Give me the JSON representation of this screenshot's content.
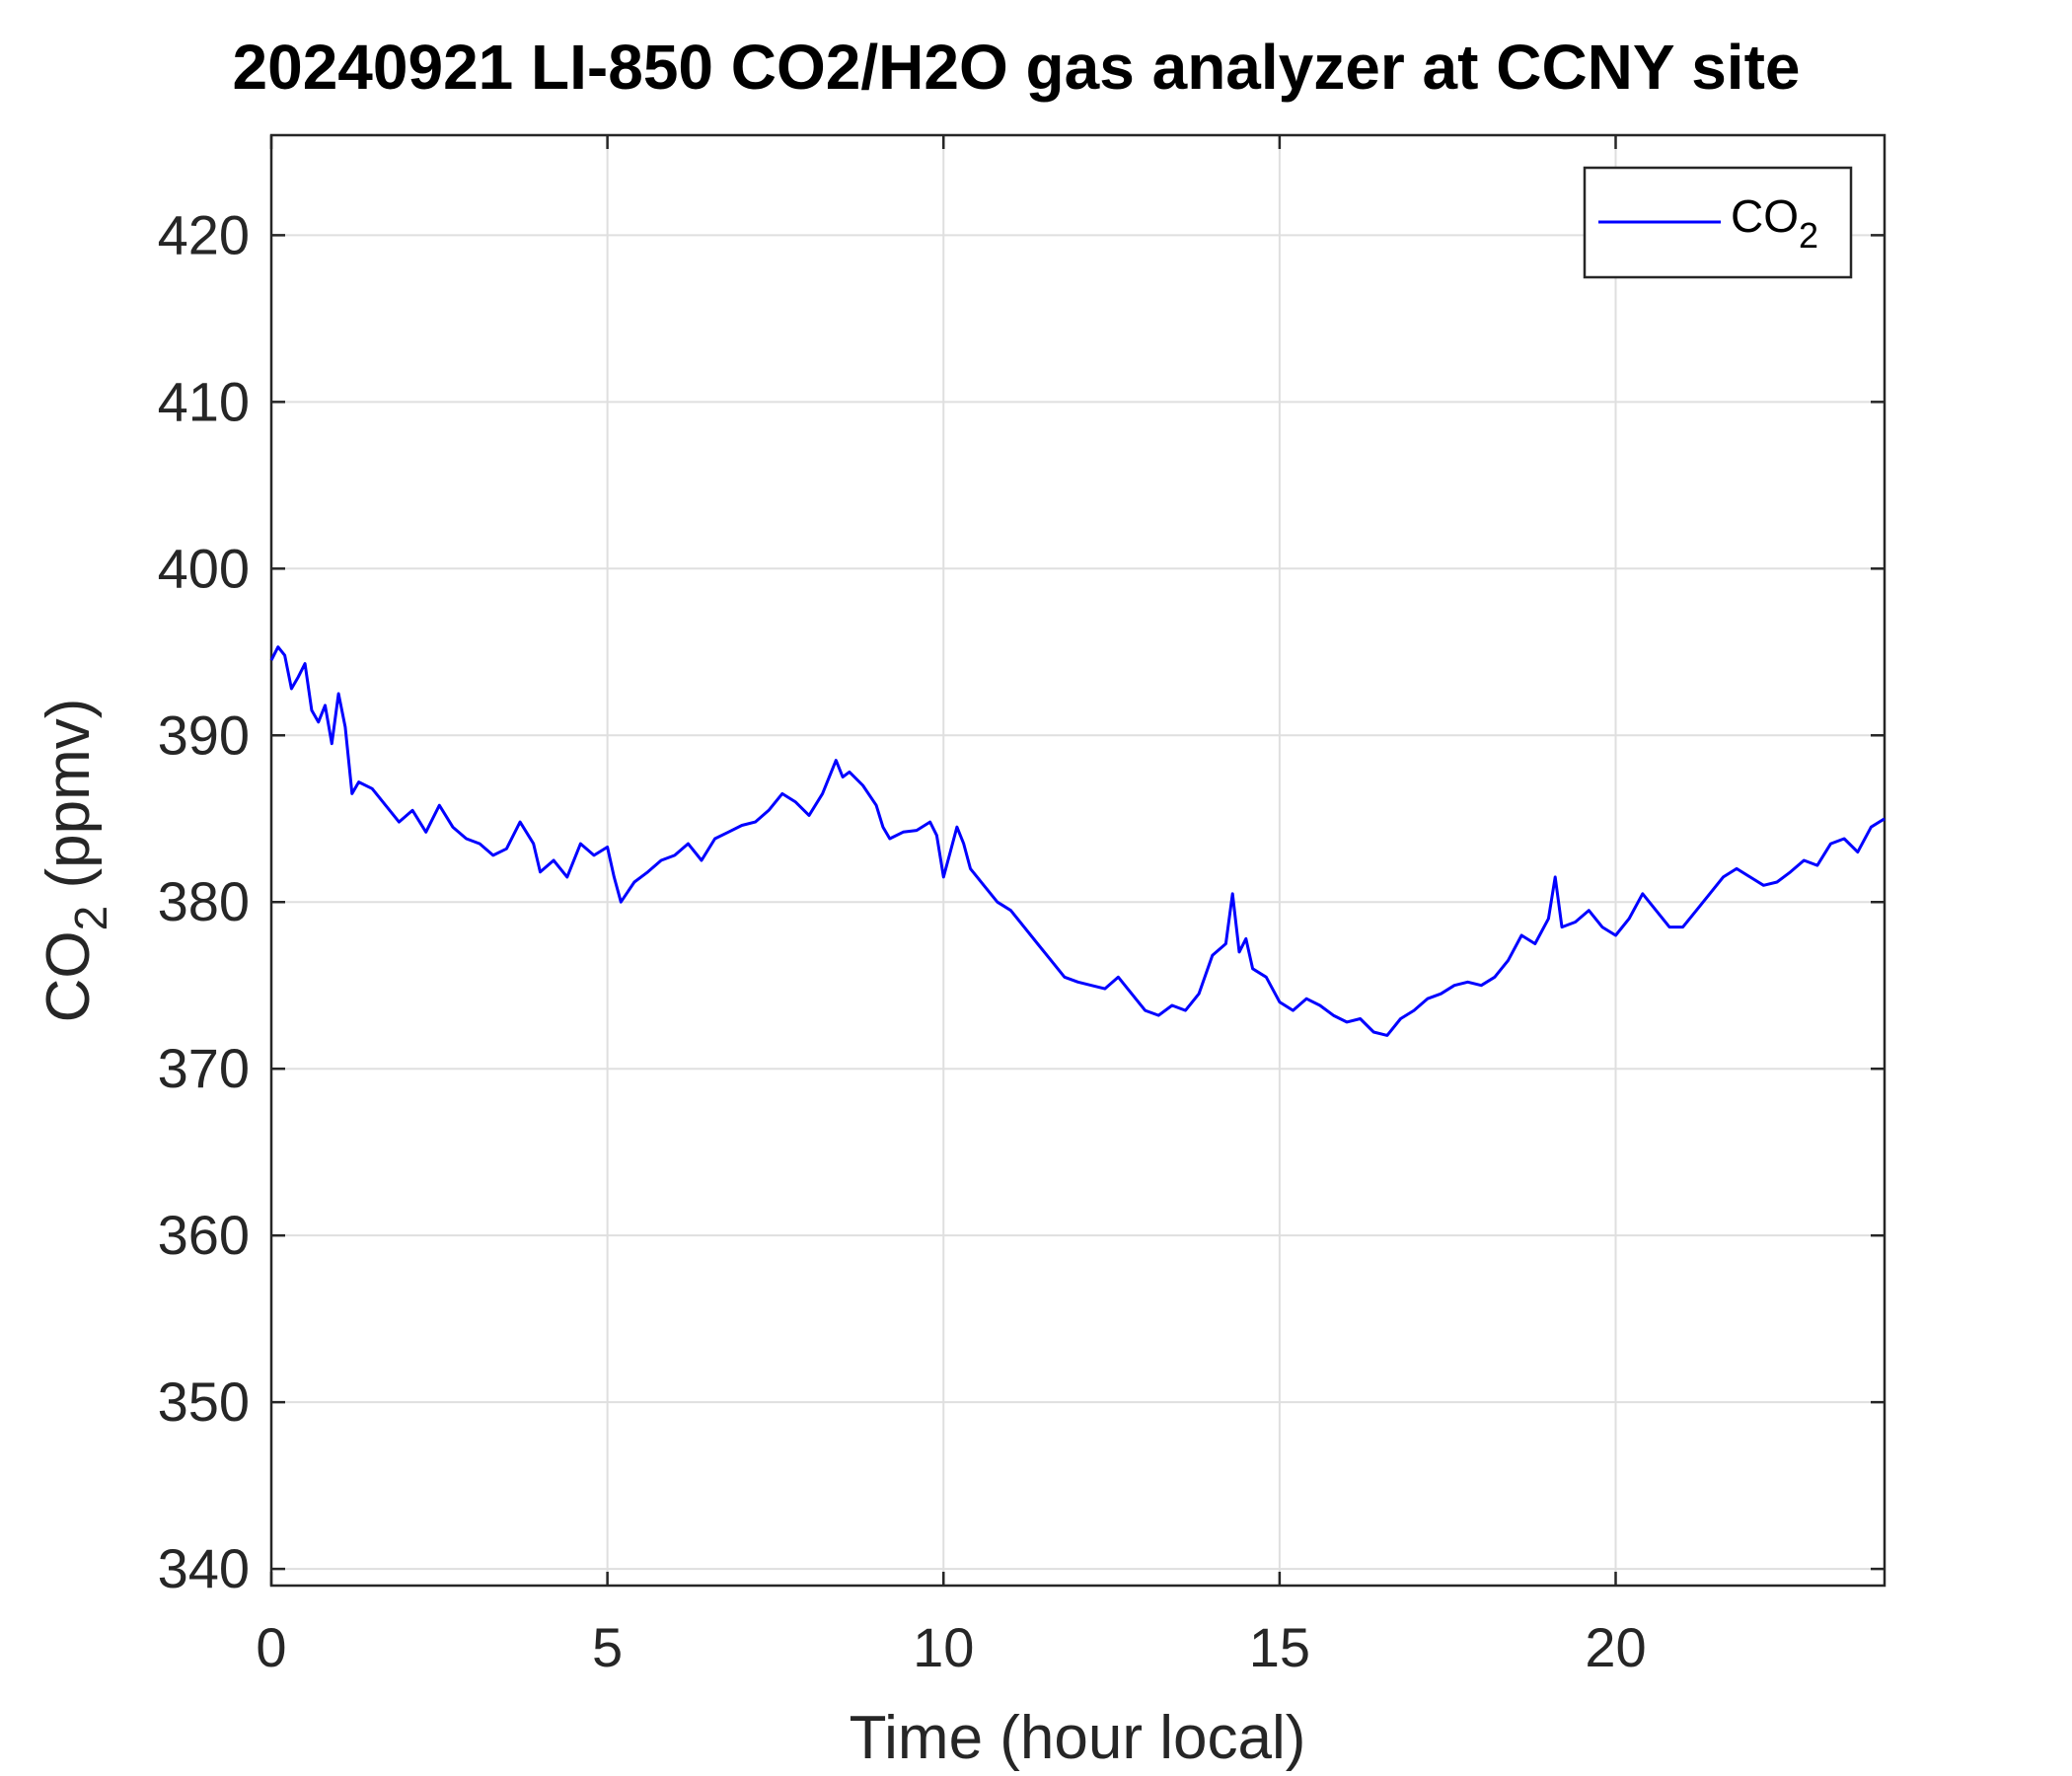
{
  "chart_data": {
    "type": "line",
    "title": "20240921 LI-850 CO2/H2O gas analyzer at CCNY site",
    "xlabel": "Time (hour local)",
    "ylabel": {
      "main": "CO",
      "sub": "2",
      "rest": " (ppmv)"
    },
    "xlim": [
      0,
      24
    ],
    "ylim": [
      339,
      426
    ],
    "xticks": [
      0,
      5,
      10,
      15,
      20
    ],
    "yticks": [
      340,
      350,
      360,
      370,
      380,
      390,
      400,
      410,
      420
    ],
    "grid": true,
    "legend": {
      "position": "top-right",
      "entries": [
        {
          "main": "CO",
          "sub": "2",
          "color": "#0000ff"
        }
      ]
    },
    "series": [
      {
        "name": "CO2",
        "color": "#0000ff",
        "points": [
          [
            0.0,
            394.5
          ],
          [
            0.1,
            395.3
          ],
          [
            0.2,
            394.8
          ],
          [
            0.3,
            392.8
          ],
          [
            0.4,
            393.5
          ],
          [
            0.5,
            394.3
          ],
          [
            0.6,
            391.5
          ],
          [
            0.7,
            390.8
          ],
          [
            0.8,
            391.8
          ],
          [
            0.9,
            389.5
          ],
          [
            1.0,
            392.5
          ],
          [
            1.1,
            390.5
          ],
          [
            1.2,
            386.5
          ],
          [
            1.3,
            387.2
          ],
          [
            1.5,
            386.8
          ],
          [
            1.7,
            385.8
          ],
          [
            1.9,
            384.8
          ],
          [
            2.1,
            385.5
          ],
          [
            2.3,
            384.2
          ],
          [
            2.5,
            385.8
          ],
          [
            2.7,
            384.5
          ],
          [
            2.9,
            383.8
          ],
          [
            3.1,
            383.5
          ],
          [
            3.3,
            382.8
          ],
          [
            3.5,
            383.2
          ],
          [
            3.7,
            384.8
          ],
          [
            3.9,
            383.5
          ],
          [
            4.0,
            381.8
          ],
          [
            4.2,
            382.5
          ],
          [
            4.4,
            381.5
          ],
          [
            4.6,
            383.5
          ],
          [
            4.8,
            382.8
          ],
          [
            5.0,
            383.3
          ],
          [
            5.1,
            381.5
          ],
          [
            5.2,
            380.0
          ],
          [
            5.4,
            381.2
          ],
          [
            5.6,
            381.8
          ],
          [
            5.8,
            382.5
          ],
          [
            6.0,
            382.8
          ],
          [
            6.2,
            383.5
          ],
          [
            6.4,
            382.5
          ],
          [
            6.6,
            383.8
          ],
          [
            6.8,
            384.2
          ],
          [
            7.0,
            384.6
          ],
          [
            7.2,
            384.8
          ],
          [
            7.4,
            385.5
          ],
          [
            7.6,
            386.5
          ],
          [
            7.8,
            386.0
          ],
          [
            8.0,
            385.2
          ],
          [
            8.2,
            386.5
          ],
          [
            8.4,
            388.5
          ],
          [
            8.5,
            387.5
          ],
          [
            8.6,
            387.8
          ],
          [
            8.8,
            387.0
          ],
          [
            9.0,
            385.8
          ],
          [
            9.1,
            384.5
          ],
          [
            9.2,
            383.8
          ],
          [
            9.4,
            384.2
          ],
          [
            9.6,
            384.3
          ],
          [
            9.8,
            384.8
          ],
          [
            9.9,
            384.0
          ],
          [
            10.0,
            381.5
          ],
          [
            10.1,
            383.0
          ],
          [
            10.2,
            384.5
          ],
          [
            10.3,
            383.5
          ],
          [
            10.4,
            382.0
          ],
          [
            10.6,
            381.0
          ],
          [
            10.8,
            380.0
          ],
          [
            11.0,
            379.5
          ],
          [
            11.2,
            378.5
          ],
          [
            11.4,
            377.5
          ],
          [
            11.6,
            376.5
          ],
          [
            11.8,
            375.5
          ],
          [
            12.0,
            375.2
          ],
          [
            12.2,
            375.0
          ],
          [
            12.4,
            374.8
          ],
          [
            12.6,
            375.5
          ],
          [
            12.8,
            374.5
          ],
          [
            13.0,
            373.5
          ],
          [
            13.2,
            373.2
          ],
          [
            13.4,
            373.8
          ],
          [
            13.6,
            373.5
          ],
          [
            13.8,
            374.5
          ],
          [
            14.0,
            376.8
          ],
          [
            14.2,
            377.5
          ],
          [
            14.3,
            380.5
          ],
          [
            14.4,
            377.0
          ],
          [
            14.5,
            377.8
          ],
          [
            14.6,
            376.0
          ],
          [
            14.8,
            375.5
          ],
          [
            15.0,
            374.0
          ],
          [
            15.2,
            373.5
          ],
          [
            15.4,
            374.2
          ],
          [
            15.6,
            373.8
          ],
          [
            15.8,
            373.2
          ],
          [
            16.0,
            372.8
          ],
          [
            16.2,
            373.0
          ],
          [
            16.4,
            372.2
          ],
          [
            16.6,
            372.0
          ],
          [
            16.8,
            373.0
          ],
          [
            17.0,
            373.5
          ],
          [
            17.2,
            374.2
          ],
          [
            17.4,
            374.5
          ],
          [
            17.6,
            375.0
          ],
          [
            17.8,
            375.2
          ],
          [
            18.0,
            375.0
          ],
          [
            18.2,
            375.5
          ],
          [
            18.4,
            376.5
          ],
          [
            18.6,
            378.0
          ],
          [
            18.8,
            377.5
          ],
          [
            19.0,
            379.0
          ],
          [
            19.1,
            381.5
          ],
          [
            19.2,
            378.5
          ],
          [
            19.4,
            378.8
          ],
          [
            19.6,
            379.5
          ],
          [
            19.8,
            378.5
          ],
          [
            20.0,
            378.0
          ],
          [
            20.2,
            379.0
          ],
          [
            20.4,
            380.5
          ],
          [
            20.6,
            379.5
          ],
          [
            20.8,
            378.5
          ],
          [
            21.0,
            378.5
          ],
          [
            21.2,
            379.5
          ],
          [
            21.4,
            380.5
          ],
          [
            21.6,
            381.5
          ],
          [
            21.8,
            382.0
          ],
          [
            22.0,
            381.5
          ],
          [
            22.2,
            381.0
          ],
          [
            22.4,
            381.2
          ],
          [
            22.6,
            381.8
          ],
          [
            22.8,
            382.5
          ],
          [
            23.0,
            382.2
          ],
          [
            23.2,
            383.5
          ],
          [
            23.4,
            383.8
          ],
          [
            23.6,
            383.0
          ],
          [
            23.8,
            384.5
          ],
          [
            24.0,
            385.0
          ]
        ]
      }
    ]
  }
}
